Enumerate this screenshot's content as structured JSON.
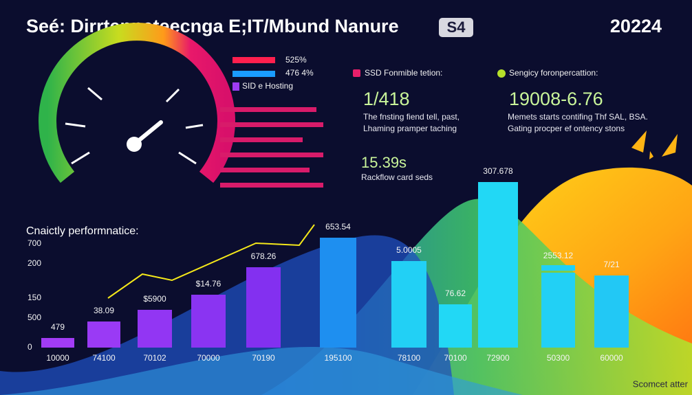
{
  "header": {
    "title": "Seé: Dirrtenneteecnga E;IT/Mbund Nanure",
    "badge": "S4",
    "year": "20224"
  },
  "gauge_legend": [
    "525%",
    "476 4%",
    "SID e Hosting"
  ],
  "stats": [
    {
      "heading": "SSD Fonmible tetion:",
      "value": "1/418",
      "lines": [
        "The fnsting fiend tell, past,",
        "Lhaming pramper taching"
      ]
    },
    {
      "heading": "Sengicy foronpercattion:",
      "value": "19008-6.76",
      "lines": [
        "Memets starts contifing Thf SAL, BSA.",
        "Gating procper ef ontency stons"
      ]
    },
    {
      "value": "15.39s",
      "lines": [
        "Rackflow card seds"
      ]
    }
  ],
  "bar_panel": {
    "title": "Cnaictly performnatice:",
    "y_labels": [
      "700",
      "200",
      "150",
      "500",
      "0"
    ],
    "bar_labels": [
      "479",
      "38.09",
      "$5900",
      "$14.76",
      "678.26",
      "653.54",
      "5.0005",
      "76.62",
      "307.678",
      "2553.12",
      "7/21"
    ],
    "x_labels": [
      "10000",
      "74100",
      "70102",
      "70000",
      "70190",
      "195100",
      "78100",
      "70100",
      "72900",
      "50300",
      "60000"
    ]
  },
  "footer": "Scomcet atter"
}
